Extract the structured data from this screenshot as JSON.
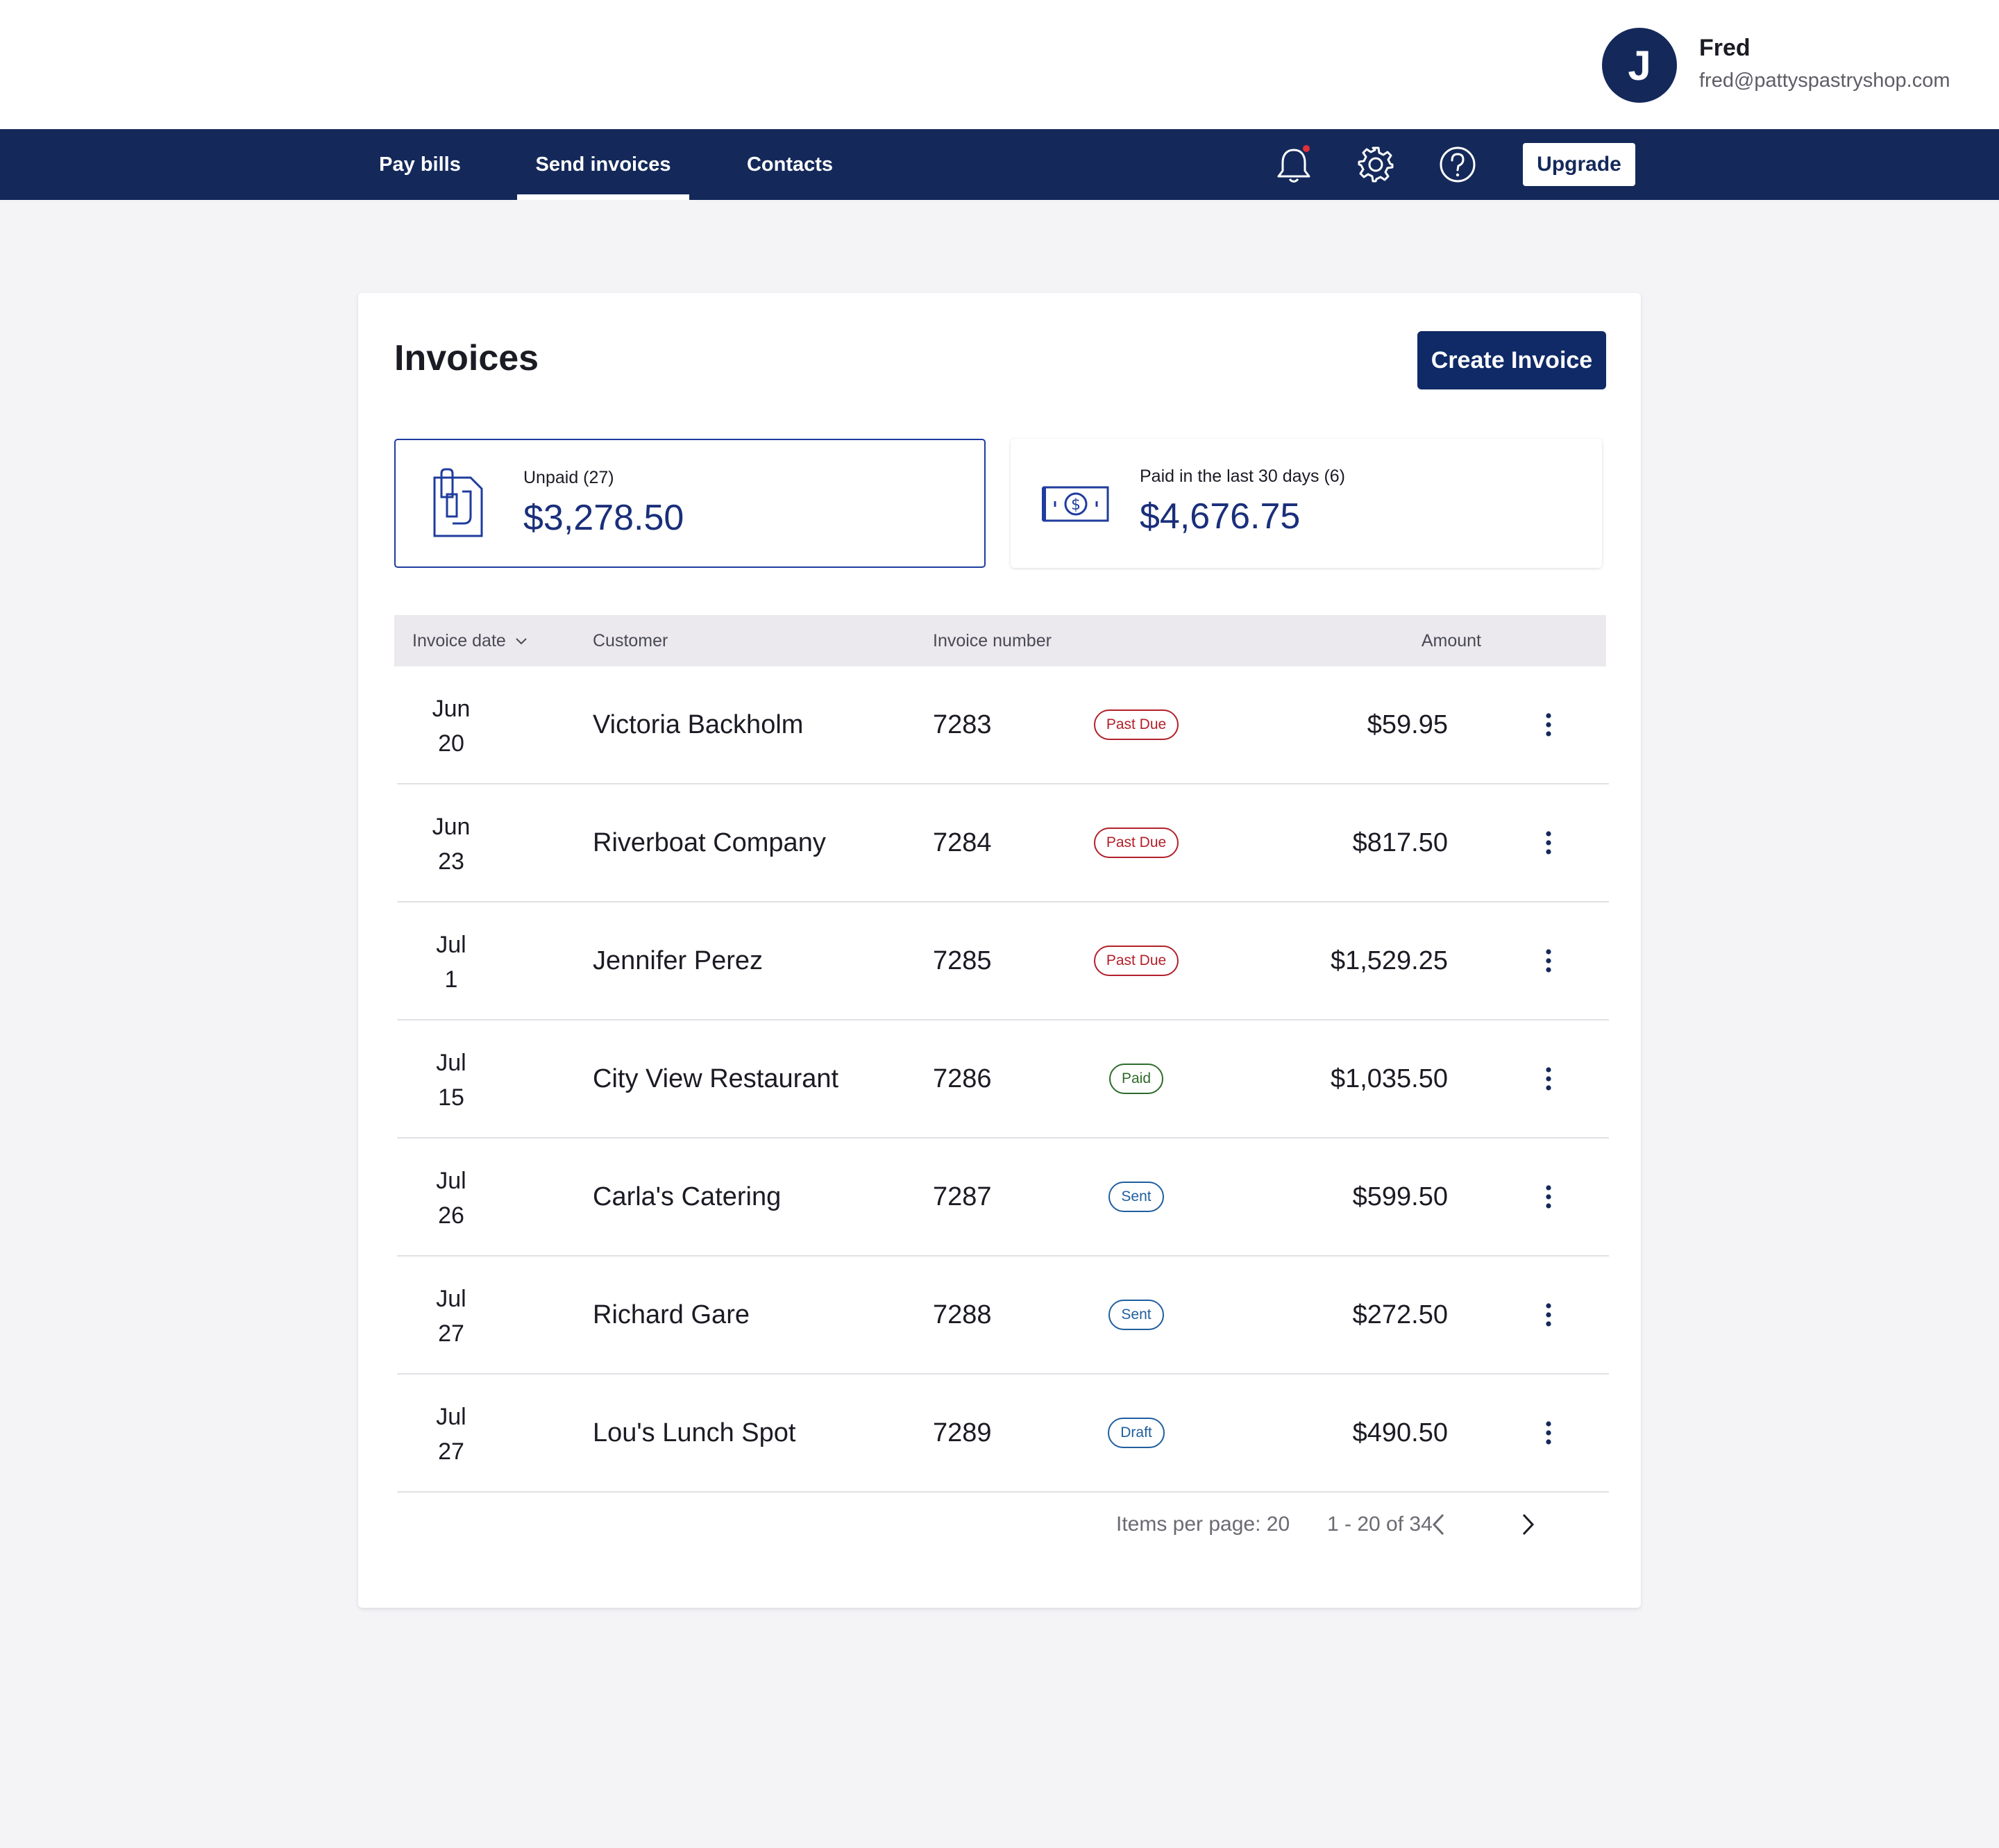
{
  "user": {
    "initial": "J",
    "name": "Fred",
    "email": "fred@pattyspastryshop.com"
  },
  "nav": {
    "tabs": [
      {
        "label": "Pay bills"
      },
      {
        "label": "Send invoices",
        "active": true
      },
      {
        "label": "Contacts"
      }
    ],
    "icons": [
      "bell-icon",
      "gear-icon",
      "help-icon"
    ],
    "upgrade_label": "Upgrade"
  },
  "page": {
    "title": "Invoices",
    "create_label": "Create Invoice"
  },
  "summary": {
    "unpaid": {
      "label": "Unpaid (27)",
      "value": "$3,278.50",
      "icon": "invoice-document-icon"
    },
    "paid": {
      "label": "Paid in the last 30 days (6)",
      "value": "$4,676.75",
      "icon": "cash-icon"
    }
  },
  "table": {
    "headers": {
      "date": "Invoice date",
      "customer": "Customer",
      "number": "Invoice number",
      "amount": "Amount"
    },
    "rows": [
      {
        "month": "Jun",
        "day": "20",
        "customer": "Victoria Backholm",
        "number": "7283",
        "status": "Past Due",
        "amount": "$59.95"
      },
      {
        "month": "Jun",
        "day": "23",
        "customer": "Riverboat Company",
        "number": "7284",
        "status": "Past Due",
        "amount": "$817.50"
      },
      {
        "month": "Jul",
        "day": "1",
        "customer": "Jennifer Perez",
        "number": "7285",
        "status": "Past Due",
        "amount": "$1,529.25"
      },
      {
        "month": "Jul",
        "day": "15",
        "customer": "City View Restaurant",
        "number": "7286",
        "status": "Paid",
        "amount": "$1,035.50"
      },
      {
        "month": "Jul",
        "day": "26",
        "customer": "Carla's Catering",
        "number": "7287",
        "status": "Sent",
        "amount": "$599.50"
      },
      {
        "month": "Jul",
        "day": "27",
        "customer": "Richard Gare",
        "number": "7288",
        "status": "Sent",
        "amount": "$272.50"
      },
      {
        "month": "Jul",
        "day": "27",
        "customer": "Lou's Lunch Spot",
        "number": "7289",
        "status": "Draft",
        "amount": "$490.50"
      }
    ]
  },
  "status_colors": {
    "Past Due": "#b3202a",
    "Paid": "#2e6b2a",
    "Sent": "#1f5e9e",
    "Draft": "#1f5e9e"
  },
  "pagination": {
    "items_per_page": "Items per page: 20",
    "range": "1 - 20 of 34"
  },
  "colors": {
    "navy": "#14295a",
    "primary_button": "#0f2a66",
    "accent_value": "#1a2f7a",
    "notification_dot": "#e0303a",
    "page_background": "#f4f3f6"
  }
}
